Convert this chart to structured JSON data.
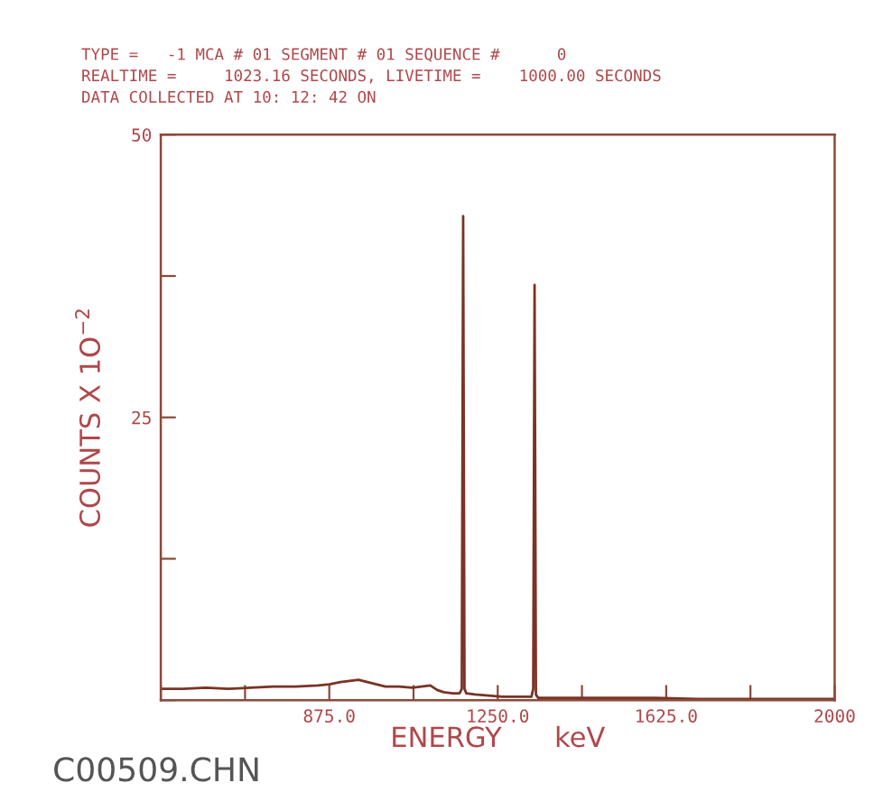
{
  "chart_data": {
    "type": "line",
    "xlabel": "ENERGY      keV",
    "ylabel": "COUNTS X 1O$^{−2}$",
    "annotations": [
      "TYPE =   -1 MCA # 01 SEGMENT # 01 SEQUENCE #      0",
      "REALTIME =     1023.16 SECONDS, LIVETIME =    1000.00 SECONDS",
      "DATA COLLECTED AT 10: 12: 42 ON",
      "C00509.CHN"
    ],
    "x": [
      500,
      550,
      600,
      650,
      700,
      750,
      800,
      850,
      875,
      900,
      920,
      940,
      960,
      980,
      1000,
      1030,
      1060,
      1080,
      1100,
      1115,
      1130,
      1150,
      1165,
      1170,
      1173,
      1176,
      1180,
      1200,
      1230,
      1260,
      1300,
      1325,
      1329,
      1332,
      1335,
      1340,
      1400,
      1500,
      1600,
      1700,
      1800,
      1900,
      2000
    ],
    "series": [
      {
        "color": "#7a3324",
        "values": [
          1.0,
          1.0,
          1.1,
          1.0,
          1.1,
          1.2,
          1.2,
          1.3,
          1.4,
          1.6,
          1.7,
          1.8,
          1.6,
          1.4,
          1.2,
          1.2,
          1.1,
          1.2,
          1.3,
          0.9,
          0.7,
          0.6,
          0.6,
          1.0,
          42.8,
          1.0,
          0.6,
          0.5,
          0.4,
          0.3,
          0.3,
          0.3,
          1.0,
          36.7,
          0.5,
          0.2,
          0.2,
          0.2,
          0.2,
          0.1,
          0.1,
          0.1,
          0.1
        ]
      }
    ],
    "xlim": [
      500,
      2000
    ],
    "xticks": [
      {
        "value": 500,
        "label": null
      },
      {
        "value": 687.5,
        "label": null
      },
      {
        "value": 875,
        "label": "875.0"
      },
      {
        "value": 1062.5,
        "label": null
      },
      {
        "value": 1250,
        "label": "1250.0"
      },
      {
        "value": 1437.5,
        "label": null
      },
      {
        "value": 1625,
        "label": "1625.0"
      },
      {
        "value": 1812.5,
        "label": null
      },
      2000
    ],
    "ylim": [
      0,
      50
    ],
    "yticks": [
      {
        "value": 0,
        "label": null
      },
      {
        "value": 12.5,
        "label": null
      },
      25,
      {
        "value": 37.5,
        "label": null
      },
      50
    ],
    "grid": false,
    "marker": "none",
    "line_style": "solid"
  }
}
